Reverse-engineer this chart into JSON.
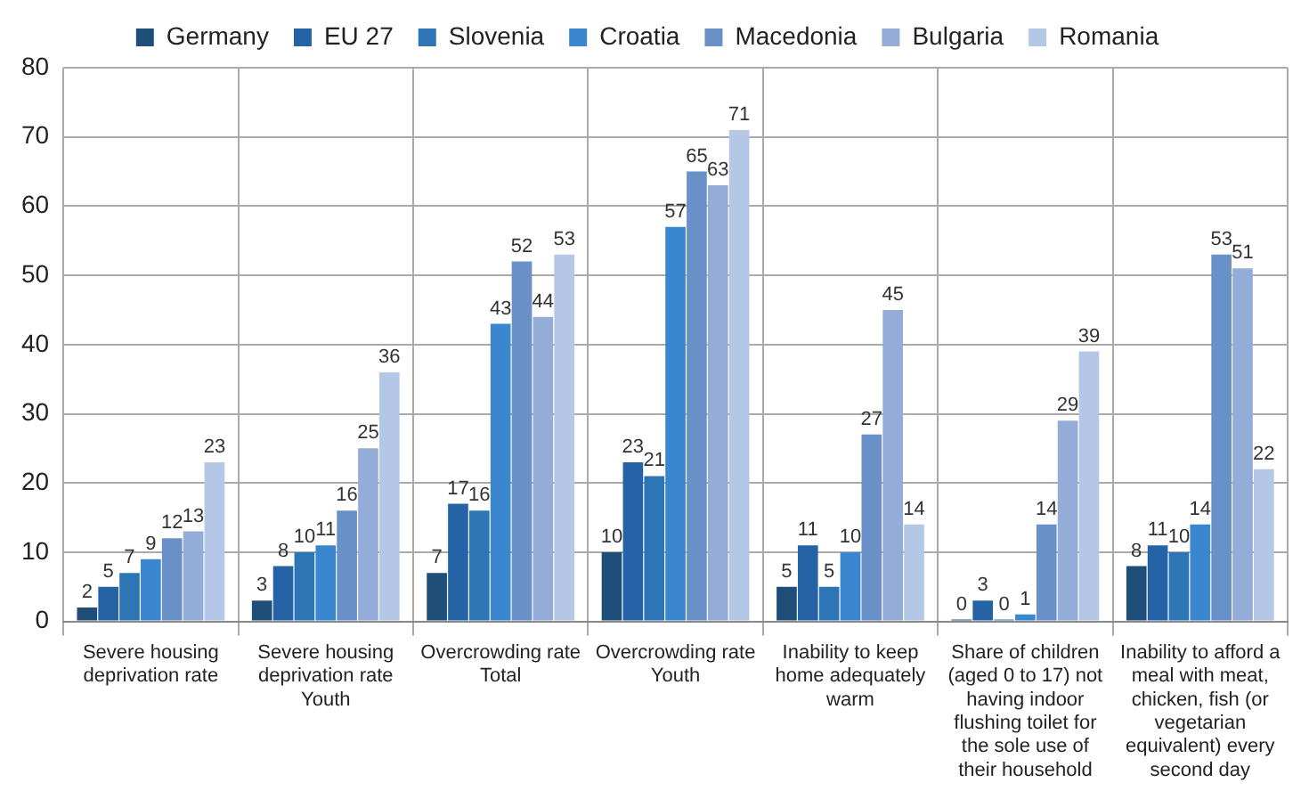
{
  "chart_data": {
    "type": "bar",
    "categories": [
      "Severe housing deprivation rate",
      "Severe housing deprivation rate Youth",
      "Overcrowding rate Total",
      "Overcrowding rate Youth",
      "Inability to keep home adequately warm",
      "Share of children (aged 0 to 17) not having indoor flushing toilet for the sole use of their household",
      "Inability to afford a meal with meat, chicken, fish (or vegetarian equivalent) every second day"
    ],
    "series": [
      {
        "name": "Germany",
        "color": "#1f4e79",
        "values": [
          2,
          3,
          7,
          10,
          5,
          0,
          8
        ]
      },
      {
        "name": "EU 27",
        "color": "#2563a6",
        "values": [
          5,
          8,
          17,
          23,
          11,
          3,
          11
        ]
      },
      {
        "name": "Slovenia",
        "color": "#2e75b6",
        "values": [
          7,
          10,
          16,
          21,
          5,
          0,
          10
        ]
      },
      {
        "name": "Croatia",
        "color": "#3a87d0",
        "values": [
          9,
          11,
          43,
          57,
          10,
          1,
          14
        ]
      },
      {
        "name": "Macedonia",
        "color": "#6a90c8",
        "values": [
          12,
          16,
          52,
          65,
          27,
          14,
          53
        ]
      },
      {
        "name": "Bulgaria",
        "color": "#93acd8",
        "values": [
          13,
          25,
          44,
          63,
          45,
          29,
          51
        ]
      },
      {
        "name": "Romania",
        "color": "#b4c7e7",
        "values": [
          23,
          36,
          53,
          71,
          14,
          39,
          22
        ]
      }
    ],
    "ylim": [
      0,
      80
    ],
    "yticks": [
      0,
      10,
      20,
      30,
      40,
      50,
      60,
      70,
      80
    ],
    "grid": true,
    "legend": "top",
    "data_labels": true
  }
}
